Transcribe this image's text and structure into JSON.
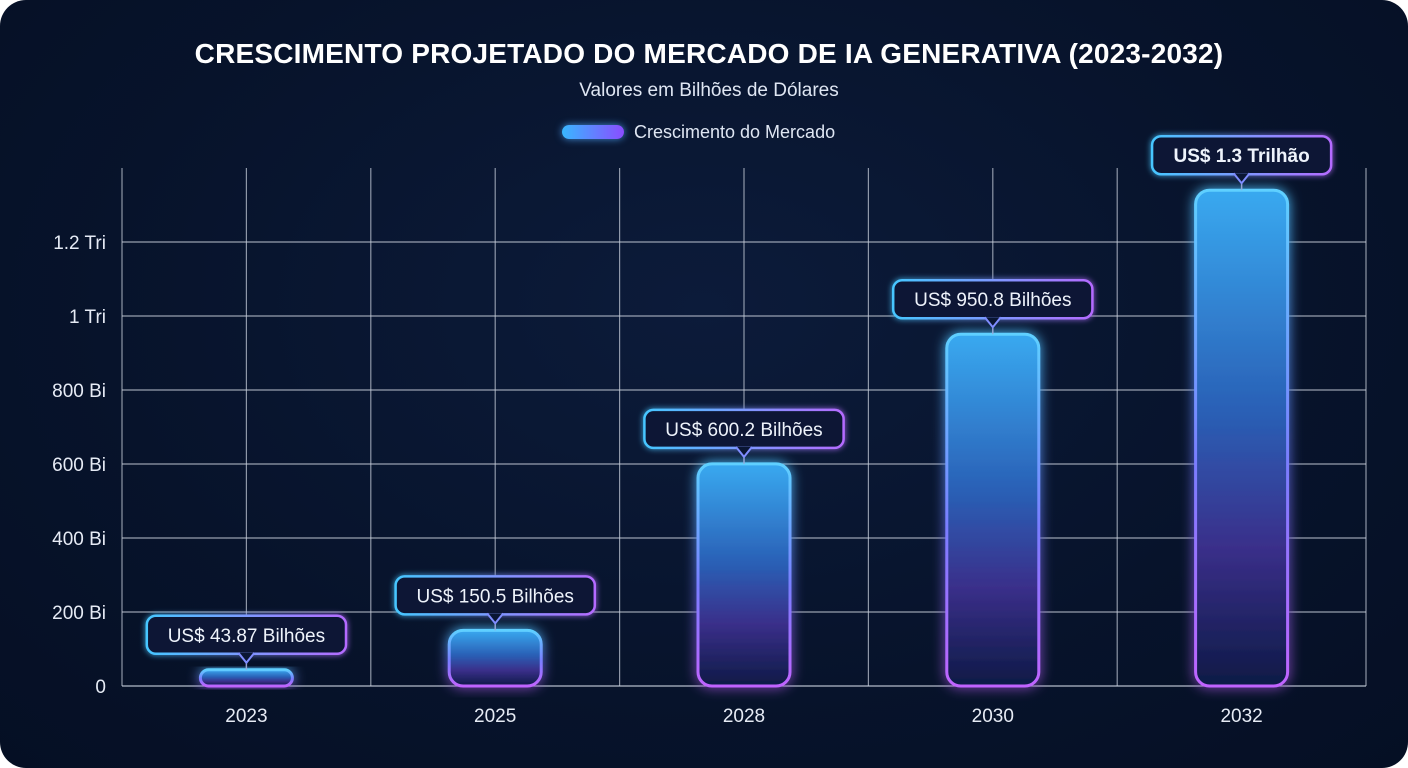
{
  "chart_data": {
    "type": "bar",
    "title": "CRESCIMENTO PROJETADO DO MERCADO DE IA GENERATIVA (2023-2032)",
    "subtitle": "Valores em Bilhões de Dólares",
    "legend": {
      "placement": "top-center",
      "entries": [
        "Crescimento do Mercado"
      ]
    },
    "categories": [
      "2023",
      "2025",
      "2028",
      "2030",
      "2032"
    ],
    "series": [
      {
        "name": "Crescimento do Mercado",
        "values": [
          43.87,
          150.5,
          600.2,
          950.8,
          1340
        ]
      }
    ],
    "data_labels": [
      "US$ 43.87 Bilhões",
      "US$ 150.5 Bilhões",
      "US$ 600.2 Bilhões",
      "US$ 950.8 Bilhões",
      "US$ 1.3 Trilhão"
    ],
    "y_ticks": [
      0,
      200,
      400,
      600,
      800,
      1000,
      1200
    ],
    "y_tick_labels": [
      "0",
      "200 Bi",
      "400 Bi",
      "600 Bi",
      "800 Bi",
      "1 Tri",
      "1.2 Tri"
    ],
    "ylim": [
      0,
      1400
    ],
    "xlabel": "",
    "ylabel": "",
    "grid": true,
    "colors": {
      "bar_top": "#3fb4ff",
      "bar_bottom": "#b05cff",
      "label_border_a": "#46c6ff",
      "label_border_b": "#b46bff",
      "grid": "#c8cfdb"
    }
  }
}
